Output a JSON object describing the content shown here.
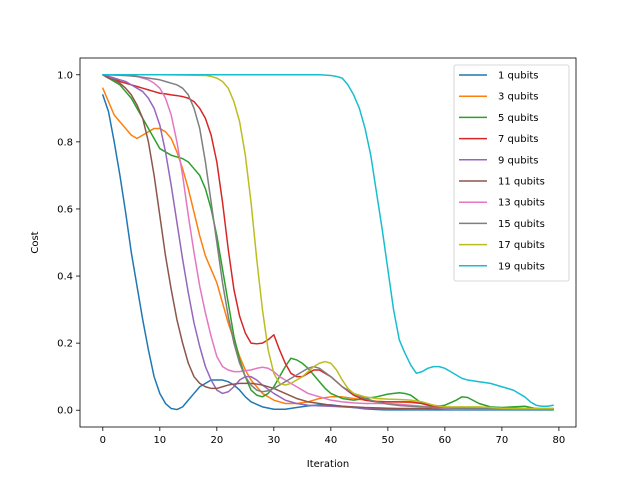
{
  "chart_data": {
    "type": "line",
    "title": "",
    "xlabel": "Iteration",
    "ylabel": "Cost",
    "xlim": [
      -4,
      83
    ],
    "ylim": [
      -0.05,
      1.05
    ],
    "xticks": [
      0,
      10,
      20,
      30,
      40,
      50,
      60,
      70,
      80
    ],
    "yticks": [
      0.0,
      0.2,
      0.4,
      0.6,
      0.8,
      1.0
    ],
    "grid": false,
    "legend_position": "top-right",
    "series": [
      {
        "name": "1 qubits",
        "color": "#1f77b4",
        "x": [
          0,
          1,
          2,
          3,
          4,
          5,
          6,
          7,
          8,
          9,
          10,
          11,
          12,
          13,
          14,
          15,
          16,
          17,
          18,
          19,
          20,
          21,
          22,
          23,
          24,
          25,
          26,
          28,
          30,
          32,
          34,
          36,
          38,
          40,
          42,
          44,
          46,
          48,
          50,
          52,
          54,
          56,
          58,
          60,
          62,
          64,
          66,
          68,
          70,
          72,
          74,
          76,
          78,
          79
        ],
        "y": [
          0.94,
          0.89,
          0.8,
          0.7,
          0.59,
          0.47,
          0.37,
          0.27,
          0.18,
          0.1,
          0.05,
          0.02,
          0.005,
          0.002,
          0.01,
          0.03,
          0.05,
          0.07,
          0.08,
          0.09,
          0.09,
          0.09,
          0.085,
          0.075,
          0.06,
          0.04,
          0.025,
          0.01,
          0.003,
          0.003,
          0.008,
          0.013,
          0.016,
          0.016,
          0.012,
          0.008,
          0.004,
          0.002,
          0.001,
          0.001,
          0.001,
          0.001,
          0.001,
          0.001,
          0.001,
          0.001,
          0.001,
          0.001,
          0.001,
          0.001,
          0.001,
          0.001,
          0.001,
          0.001
        ]
      },
      {
        "name": "3 qubits",
        "color": "#ff7f0e",
        "x": [
          0,
          1,
          2,
          3,
          4,
          5,
          6,
          7,
          8,
          9,
          10,
          11,
          12,
          13,
          14,
          15,
          16,
          17,
          18,
          19,
          20,
          21,
          22,
          23,
          24,
          25,
          26,
          27,
          28,
          30,
          32,
          34,
          36,
          38,
          40,
          42,
          44,
          46,
          48,
          50,
          52,
          54,
          56,
          58,
          60,
          62,
          64,
          66,
          68,
          70,
          72,
          74,
          76,
          78,
          79
        ],
        "y": [
          0.96,
          0.92,
          0.88,
          0.86,
          0.84,
          0.82,
          0.81,
          0.82,
          0.83,
          0.84,
          0.84,
          0.83,
          0.81,
          0.77,
          0.72,
          0.66,
          0.59,
          0.52,
          0.46,
          0.42,
          0.38,
          0.32,
          0.26,
          0.21,
          0.16,
          0.12,
          0.09,
          0.07,
          0.05,
          0.03,
          0.02,
          0.02,
          0.025,
          0.035,
          0.04,
          0.04,
          0.035,
          0.03,
          0.027,
          0.025,
          0.025,
          0.023,
          0.02,
          0.015,
          0.01,
          0.006,
          0.005,
          0.004,
          0.003,
          0.003,
          0.003,
          0.003,
          0.003,
          0.003,
          0.003
        ]
      },
      {
        "name": "5 qubits",
        "color": "#2ca02c",
        "x": [
          0,
          1,
          2,
          3,
          4,
          5,
          6,
          7,
          8,
          9,
          10,
          11,
          12,
          13,
          14,
          15,
          16,
          17,
          18,
          19,
          20,
          21,
          22,
          23,
          24,
          25,
          26,
          27,
          28,
          29,
          30,
          31,
          32,
          33,
          34,
          35,
          36,
          37,
          38,
          39,
          40,
          42,
          44,
          46,
          48,
          50,
          52,
          53,
          54,
          56,
          58,
          60,
          62,
          63,
          64,
          66,
          68,
          70,
          72,
          74,
          76,
          78,
          79
        ],
        "y": [
          1.0,
          0.99,
          0.98,
          0.97,
          0.95,
          0.93,
          0.9,
          0.87,
          0.84,
          0.81,
          0.78,
          0.77,
          0.76,
          0.755,
          0.75,
          0.74,
          0.72,
          0.7,
          0.66,
          0.6,
          0.52,
          0.42,
          0.32,
          0.22,
          0.15,
          0.1,
          0.06,
          0.045,
          0.04,
          0.05,
          0.07,
          0.1,
          0.13,
          0.155,
          0.15,
          0.14,
          0.125,
          0.105,
          0.085,
          0.065,
          0.05,
          0.035,
          0.03,
          0.035,
          0.04,
          0.048,
          0.052,
          0.05,
          0.045,
          0.02,
          0.01,
          0.015,
          0.03,
          0.04,
          0.038,
          0.02,
          0.01,
          0.008,
          0.01,
          0.012,
          0.005,
          0.002,
          0.002
        ]
      },
      {
        "name": "7 qubits",
        "color": "#d62728",
        "x": [
          0,
          1,
          2,
          3,
          4,
          5,
          6,
          7,
          8,
          9,
          10,
          11,
          12,
          13,
          14,
          15,
          16,
          17,
          18,
          19,
          20,
          21,
          22,
          23,
          24,
          25,
          26,
          27,
          28,
          29,
          30,
          31,
          32,
          33,
          34,
          35,
          36,
          37,
          38,
          40,
          42,
          44,
          46,
          48,
          50,
          52,
          54,
          56,
          58,
          60,
          62,
          64,
          66,
          68,
          70,
          72,
          74,
          76,
          78,
          79
        ],
        "y": [
          1.0,
          0.995,
          0.99,
          0.98,
          0.975,
          0.97,
          0.965,
          0.96,
          0.955,
          0.95,
          0.945,
          0.943,
          0.94,
          0.938,
          0.935,
          0.93,
          0.92,
          0.9,
          0.87,
          0.82,
          0.74,
          0.62,
          0.48,
          0.36,
          0.28,
          0.23,
          0.2,
          0.198,
          0.2,
          0.21,
          0.225,
          0.18,
          0.14,
          0.11,
          0.1,
          0.1,
          0.11,
          0.12,
          0.12,
          0.1,
          0.07,
          0.045,
          0.03,
          0.025,
          0.025,
          0.025,
          0.025,
          0.02,
          0.012,
          0.007,
          0.005,
          0.005,
          0.005,
          0.005,
          0.005,
          0.005,
          0.005,
          0.004,
          0.003,
          0.003
        ]
      },
      {
        "name": "9 qubits",
        "color": "#9467bd",
        "x": [
          0,
          1,
          2,
          3,
          4,
          5,
          6,
          7,
          8,
          9,
          10,
          11,
          12,
          13,
          14,
          15,
          16,
          17,
          18,
          19,
          20,
          21,
          22,
          23,
          24,
          25,
          26,
          27,
          28,
          30,
          32,
          34,
          36,
          38,
          40,
          42,
          44,
          46,
          48,
          50,
          52,
          54,
          56,
          58,
          60,
          62,
          64,
          66,
          68,
          70,
          72,
          74,
          76,
          78,
          79
        ],
        "y": [
          1.0,
          0.995,
          0.99,
          0.985,
          0.98,
          0.97,
          0.96,
          0.95,
          0.93,
          0.9,
          0.85,
          0.77,
          0.67,
          0.56,
          0.45,
          0.35,
          0.26,
          0.19,
          0.13,
          0.09,
          0.06,
          0.05,
          0.055,
          0.07,
          0.09,
          0.1,
          0.1,
          0.09,
          0.075,
          0.05,
          0.03,
          0.02,
          0.015,
          0.013,
          0.012,
          0.01,
          0.008,
          0.006,
          0.005,
          0.004,
          0.004,
          0.003,
          0.003,
          0.003,
          0.003,
          0.003,
          0.003,
          0.003,
          0.003,
          0.003,
          0.003,
          0.003,
          0.003,
          0.003,
          0.003
        ]
      },
      {
        "name": "11 qubits",
        "color": "#8c564b",
        "x": [
          0,
          1,
          2,
          3,
          4,
          5,
          6,
          7,
          8,
          9,
          10,
          11,
          12,
          13,
          14,
          15,
          16,
          17,
          18,
          19,
          20,
          21,
          22,
          23,
          24,
          25,
          26,
          27,
          28,
          30,
          32,
          34,
          36,
          38,
          40,
          42,
          44,
          46,
          48,
          50,
          52,
          54,
          56,
          58,
          60,
          62,
          64,
          66,
          68,
          70,
          72,
          74,
          76,
          78,
          79
        ],
        "y": [
          1.0,
          0.99,
          0.985,
          0.975,
          0.96,
          0.94,
          0.91,
          0.87,
          0.8,
          0.7,
          0.58,
          0.46,
          0.36,
          0.27,
          0.2,
          0.14,
          0.1,
          0.08,
          0.07,
          0.065,
          0.065,
          0.07,
          0.075,
          0.078,
          0.08,
          0.08,
          0.08,
          0.078,
          0.075,
          0.065,
          0.05,
          0.035,
          0.025,
          0.02,
          0.015,
          0.012,
          0.01,
          0.008,
          0.007,
          0.006,
          0.005,
          0.005,
          0.005,
          0.004,
          0.004,
          0.004,
          0.004,
          0.004,
          0.004,
          0.004,
          0.004,
          0.004,
          0.004,
          0.004,
          0.004
        ]
      },
      {
        "name": "13 qubits",
        "color": "#e377c2",
        "x": [
          0,
          1,
          2,
          3,
          4,
          5,
          6,
          7,
          8,
          9,
          10,
          11,
          12,
          13,
          14,
          15,
          16,
          17,
          18,
          19,
          20,
          21,
          22,
          23,
          24,
          25,
          26,
          27,
          28,
          29,
          30,
          31,
          32,
          34,
          36,
          38,
          40,
          42,
          44,
          46,
          48,
          50,
          52,
          54,
          56,
          58,
          60,
          62,
          64,
          66,
          68,
          70,
          72,
          74,
          76,
          78,
          79
        ],
        "y": [
          1.0,
          1.0,
          1.0,
          0.999,
          0.998,
          0.997,
          0.995,
          0.99,
          0.985,
          0.975,
          0.96,
          0.93,
          0.88,
          0.8,
          0.7,
          0.58,
          0.47,
          0.37,
          0.29,
          0.22,
          0.16,
          0.13,
          0.12,
          0.115,
          0.115,
          0.118,
          0.12,
          0.125,
          0.128,
          0.125,
          0.115,
          0.1,
          0.09,
          0.07,
          0.05,
          0.04,
          0.03,
          0.025,
          0.022,
          0.02,
          0.02,
          0.02,
          0.018,
          0.015,
          0.012,
          0.008,
          0.005,
          0.004,
          0.004,
          0.004,
          0.004,
          0.004,
          0.004,
          0.004,
          0.004,
          0.004,
          0.004
        ]
      },
      {
        "name": "15 qubits",
        "color": "#7f7f7f",
        "x": [
          0,
          2,
          4,
          6,
          8,
          10,
          11,
          12,
          13,
          14,
          15,
          16,
          17,
          18,
          19,
          20,
          21,
          22,
          23,
          24,
          25,
          26,
          27,
          28,
          29,
          30,
          31,
          32,
          33,
          34,
          35,
          36,
          37,
          38,
          40,
          42,
          44,
          46,
          48,
          50,
          52,
          54,
          56,
          58,
          60,
          62,
          64,
          66,
          68,
          70,
          72,
          74,
          76,
          78,
          79
        ],
        "y": [
          1.0,
          0.999,
          0.998,
          0.995,
          0.99,
          0.985,
          0.98,
          0.975,
          0.97,
          0.96,
          0.94,
          0.9,
          0.84,
          0.74,
          0.62,
          0.5,
          0.38,
          0.28,
          0.2,
          0.14,
          0.1,
          0.075,
          0.06,
          0.055,
          0.058,
          0.065,
          0.075,
          0.085,
          0.095,
          0.105,
          0.115,
          0.125,
          0.13,
          0.125,
          0.1,
          0.07,
          0.05,
          0.035,
          0.025,
          0.018,
          0.014,
          0.012,
          0.01,
          0.008,
          0.007,
          0.006,
          0.005,
          0.005,
          0.005,
          0.005,
          0.005,
          0.005,
          0.005,
          0.005,
          0.005
        ]
      },
      {
        "name": "17 qubits",
        "color": "#bcbd22",
        "x": [
          0,
          5,
          10,
          15,
          18,
          19,
          20,
          21,
          22,
          23,
          24,
          25,
          26,
          27,
          28,
          29,
          30,
          31,
          32,
          33,
          34,
          35,
          36,
          37,
          38,
          39,
          40,
          41,
          42,
          43,
          44,
          46,
          48,
          50,
          52,
          54,
          56,
          58,
          60,
          62,
          64,
          66,
          68,
          70,
          72,
          74,
          76,
          78,
          79
        ],
        "y": [
          1.0,
          1.0,
          1.0,
          0.999,
          0.998,
          0.995,
          0.99,
          0.98,
          0.96,
          0.92,
          0.86,
          0.76,
          0.62,
          0.45,
          0.3,
          0.18,
          0.11,
          0.08,
          0.075,
          0.08,
          0.09,
          0.1,
          0.115,
          0.13,
          0.14,
          0.145,
          0.14,
          0.12,
          0.09,
          0.065,
          0.05,
          0.04,
          0.035,
          0.033,
          0.032,
          0.03,
          0.025,
          0.015,
          0.01,
          0.01,
          0.01,
          0.01,
          0.008,
          0.006,
          0.005,
          0.005,
          0.005,
          0.005,
          0.005
        ]
      },
      {
        "name": "19 qubits",
        "color": "#17becf",
        "x": [
          0,
          10,
          20,
          30,
          38,
          40,
          41,
          42,
          43,
          44,
          45,
          46,
          47,
          48,
          49,
          50,
          51,
          52,
          53,
          54,
          55,
          56,
          57,
          58,
          59,
          60,
          61,
          62,
          63,
          64,
          66,
          68,
          70,
          72,
          74,
          75,
          76,
          77,
          78,
          79
        ],
        "y": [
          1.0,
          1.0,
          1.0,
          1.0,
          1.0,
          0.998,
          0.995,
          0.99,
          0.97,
          0.94,
          0.9,
          0.84,
          0.76,
          0.65,
          0.54,
          0.42,
          0.3,
          0.21,
          0.17,
          0.135,
          0.11,
          0.115,
          0.125,
          0.13,
          0.13,
          0.125,
          0.115,
          0.105,
          0.095,
          0.09,
          0.085,
          0.08,
          0.07,
          0.06,
          0.04,
          0.025,
          0.015,
          0.012,
          0.012,
          0.015
        ]
      }
    ]
  }
}
